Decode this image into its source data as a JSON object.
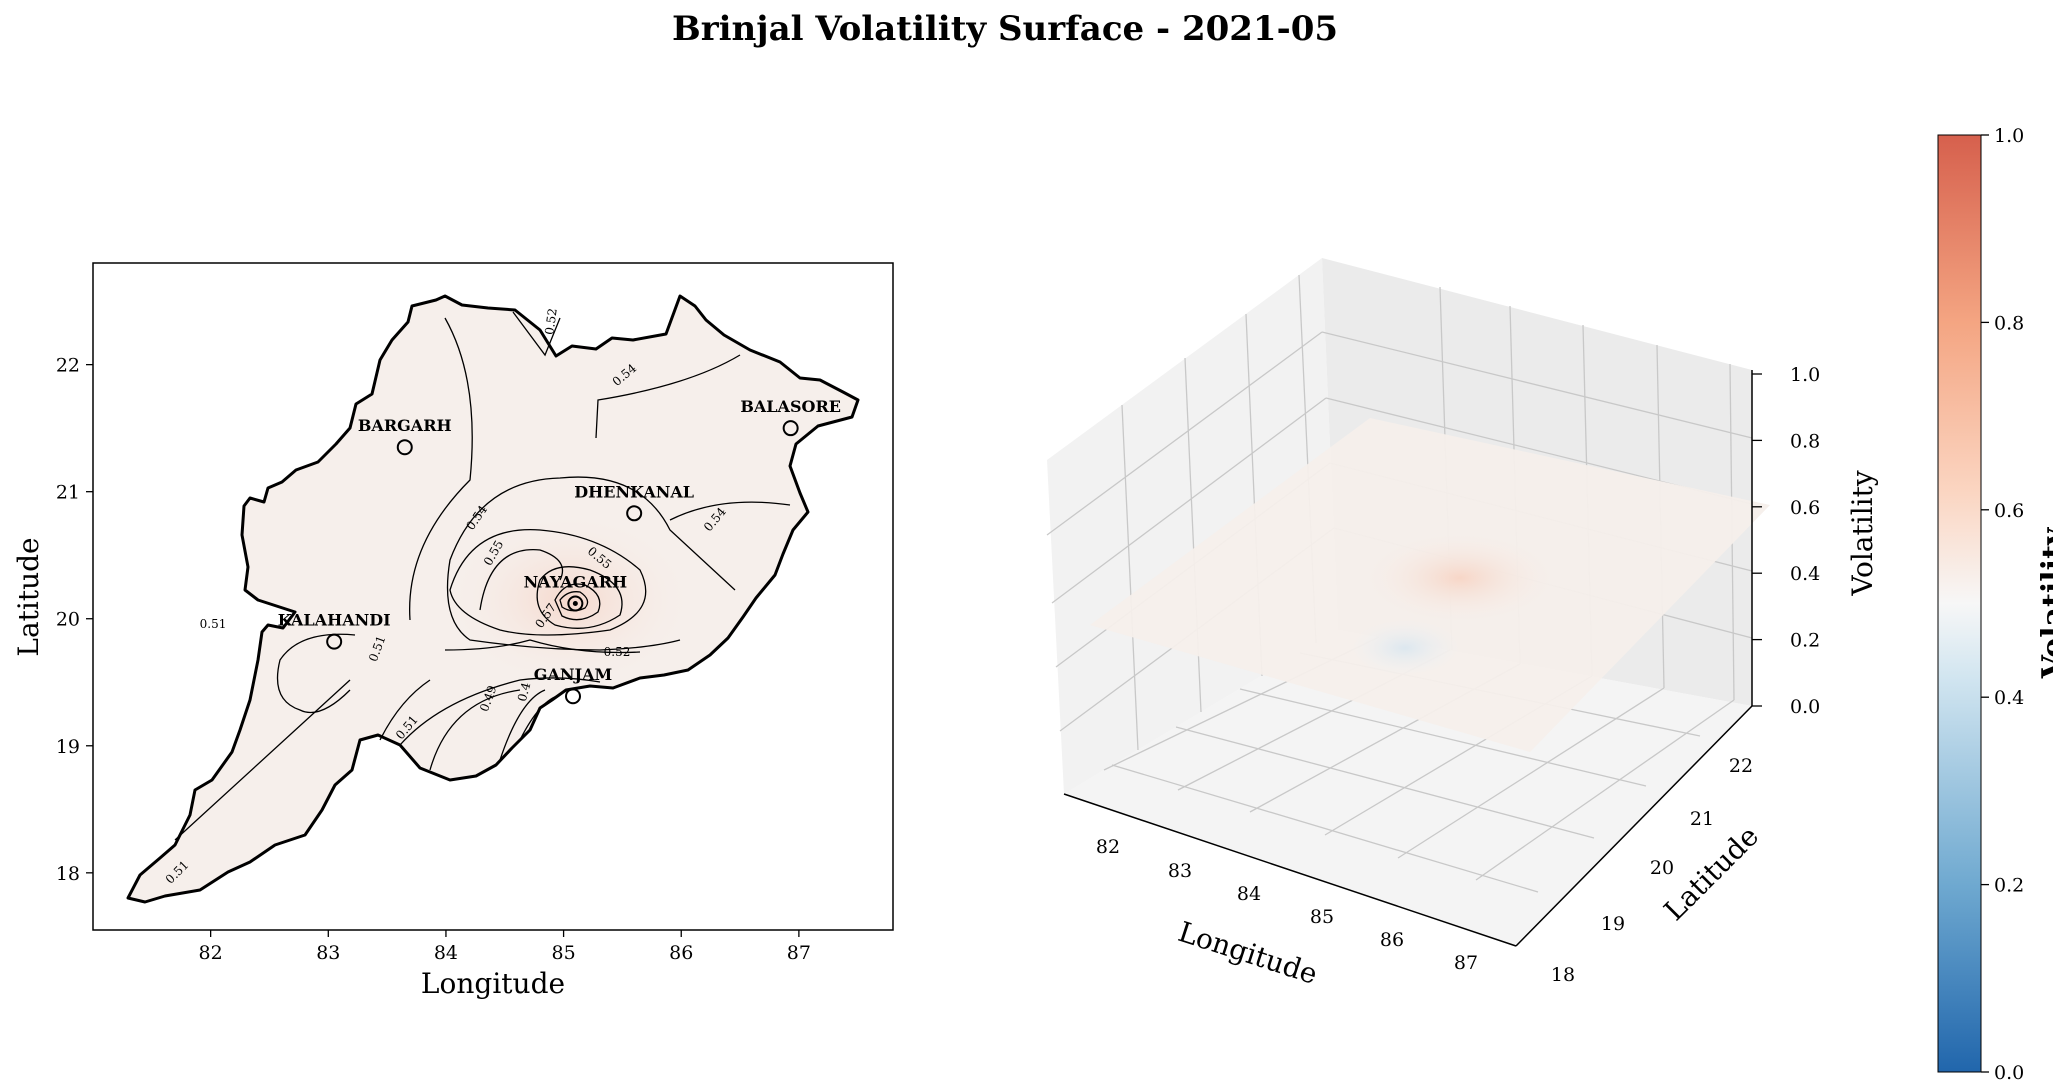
{
  "chart_data": [
    {
      "type": "heatmap",
      "subtype": "contour-map",
      "title": "Brinjal Volatility Surface - 2021-05",
      "xlabel": "Longitude",
      "ylabel": "Latitude",
      "xlim": [
        81.0,
        87.8
      ],
      "ylim": [
        17.55,
        22.8
      ],
      "xticks": [
        "82",
        "83",
        "84",
        "85",
        "86",
        "87"
      ],
      "yticks": [
        "18",
        "19",
        "20",
        "21",
        "22"
      ],
      "colormap": "RdBu_r",
      "vmin": 0.0,
      "vmax": 1.0,
      "contour_labels": [
        "0.52",
        "0.54",
        "0.54",
        "0.54",
        "0.55",
        "0.55",
        "0.57",
        "0.52",
        "0.51",
        "0.51",
        "0.51",
        "0.51",
        "0.49",
        "0.4"
      ],
      "points": [
        {
          "name": "BARGARH",
          "lon": 83.65,
          "lat": 21.35
        },
        {
          "name": "BALASORE",
          "lon": 86.93,
          "lat": 21.5
        },
        {
          "name": "DHENKANAL",
          "lon": 85.6,
          "lat": 20.83
        },
        {
          "name": "NAYAGARH",
          "lon": 85.1,
          "lat": 20.12
        },
        {
          "name": "KALAHANDI",
          "lon": 83.05,
          "lat": 19.82
        },
        {
          "name": "GANJAM",
          "lon": 85.08,
          "lat": 19.39
        }
      ]
    },
    {
      "type": "surface3d",
      "xlabel": "Longitude",
      "ylabel": "Latitude",
      "zlabel": "Volatility",
      "xticks": [
        "82",
        "83",
        "84",
        "85",
        "86",
        "87"
      ],
      "yticks": [
        "18",
        "19",
        "20",
        "21",
        "22"
      ],
      "zticks": [
        "0.0",
        "0.2",
        "0.4",
        "0.6",
        "0.8",
        "1.0"
      ],
      "zlim": [
        0.0,
        1.0
      ]
    }
  ],
  "colorbar": {
    "label": "Volatility",
    "ticks": [
      "0.0",
      "0.2",
      "0.4",
      "0.6",
      "0.8",
      "1.0"
    ],
    "colors": [
      "#2c7bb6",
      "#92c5de",
      "#f7f7f7",
      "#f4a582",
      "#d6604d"
    ]
  }
}
